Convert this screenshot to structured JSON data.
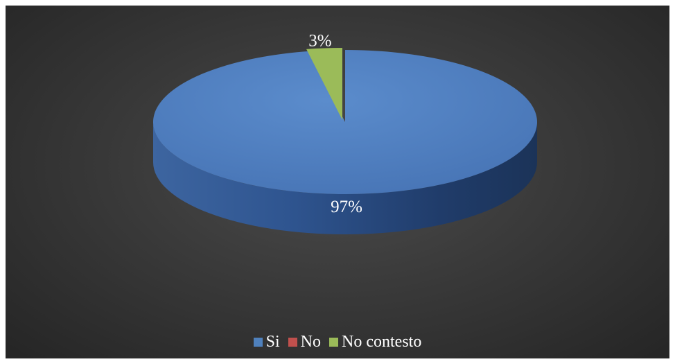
{
  "chart_data": {
    "type": "pie",
    "title": "",
    "categories": [
      "Si",
      "No",
      "No contesto"
    ],
    "values": [
      97,
      0,
      3
    ],
    "labels": [
      "97%",
      "",
      "3%"
    ],
    "colors": [
      "#4f81bd",
      "#c0504d",
      "#9bbb59"
    ],
    "legend_position": "bottom",
    "style": "3d"
  }
}
